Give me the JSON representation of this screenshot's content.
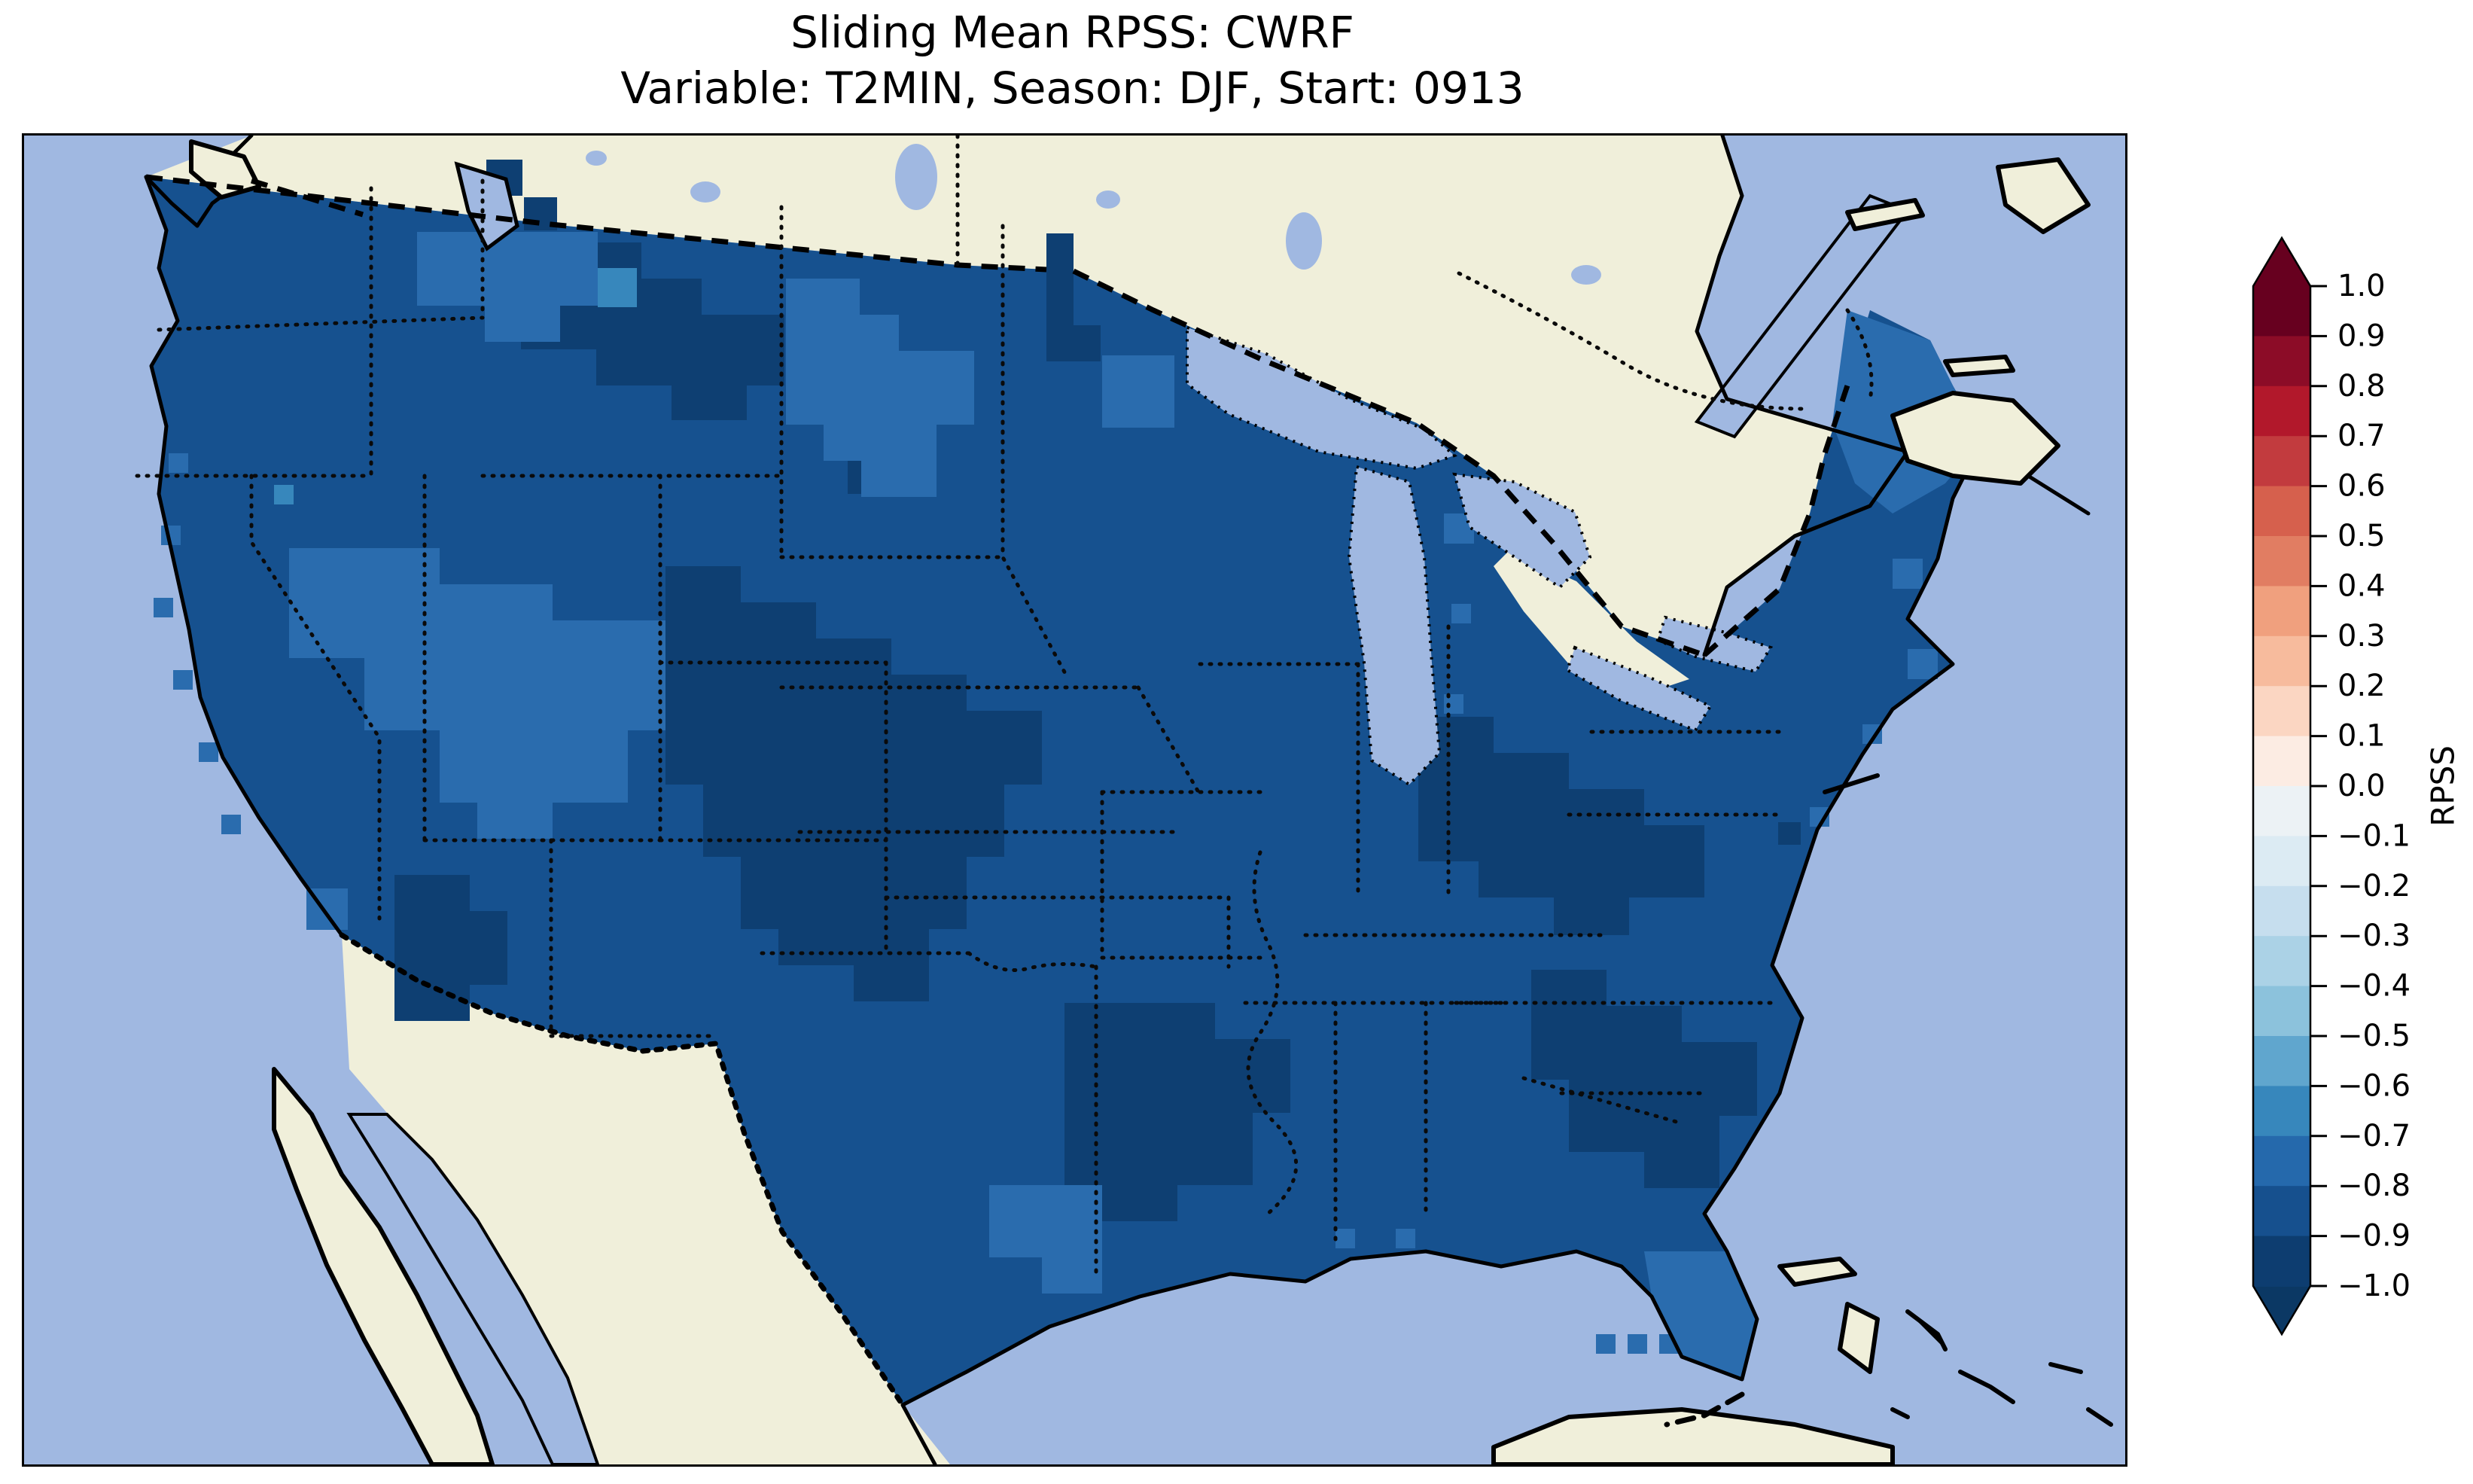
{
  "title": {
    "line1": "Sliding Mean RPSS: CWRF",
    "line2": "Variable: T2MIN, Season: DJF, Start: 0913"
  },
  "colorbar": {
    "label": "RPSS",
    "ticks": [
      "1.0",
      "0.9",
      "0.8",
      "0.7",
      "0.6",
      "0.5",
      "0.4",
      "0.3",
      "0.2",
      "0.1",
      "0.0",
      "−0.1",
      "−0.2",
      "−0.3",
      "−0.4",
      "−0.5",
      "−0.6",
      "−0.7",
      "−0.8",
      "−0.9",
      "−1.0"
    ],
    "segments": [
      "#67001f",
      "#8c0c27",
      "#b2182b",
      "#c23b3e",
      "#d6604d",
      "#e17d62",
      "#f0a07e",
      "#f7bb9d",
      "#fbd6c2",
      "#fcece3",
      "#ecf2f5",
      "#dcebf3",
      "#c6deee",
      "#abd2e6",
      "#8cc2dc",
      "#60a6ce",
      "#3787bc",
      "#2569ac",
      "#16508e",
      "#0d3d70"
    ],
    "extend_over": "#67001f",
    "extend_under": "#0b3864",
    "tick_color": "#000000"
  },
  "map": {
    "colors": {
      "water": "#a0b8e1",
      "land": "#f0efda",
      "coastline": "#000000",
      "bin_m065": "#3787bc",
      "bin_m075": "#2a6cae",
      "bin_m085": "#16518f",
      "bin_m095": "#0e3f72"
    }
  },
  "chart_data": {
    "type": "heatmap",
    "title": "Sliding Mean RPSS: CWRF",
    "subtitle": "Variable: T2MIN, Season: DJF, Start: 0913",
    "model": "CWRF",
    "variable": "T2MIN",
    "season": "DJF",
    "start": "0913",
    "colorbar_label": "RPSS",
    "colorbar_range": [
      -1.0,
      1.0
    ],
    "colorbar_tick_step": 0.1,
    "colorbar_bin_edges": [
      -1.0,
      -0.9,
      -0.8,
      -0.7,
      -0.6,
      -0.5,
      -0.4,
      -0.3,
      -0.2,
      -0.1,
      0.0,
      0.1,
      0.2,
      0.3,
      0.4,
      0.5,
      0.6,
      0.7,
      0.8,
      0.9,
      1.0
    ],
    "colormap": "RdBu_r discrete, 0.1-wide bins, pointed extension triangles on both ends",
    "region": "Continental United States gridded field over a North America basemap (cream land, light-blue ocean and Great Lakes, dotted state borders, dashed international borders)",
    "legend_position": "vertical colorbar at right",
    "observed_values": {
      "dominant_range": "-0.9 to -0.8 over most of CONUS",
      "regions": [
        {
          "name": "Most of CONUS interior",
          "rpss": "-0.9 to -0.8"
        },
        {
          "name": "Montana / western North Dakota",
          "rpss": "-1.0 to -0.9"
        },
        {
          "name": "Central Plains (WY/NE/CO/KS into OK & TX panhandle)",
          "rpss": "-1.0 to -0.9"
        },
        {
          "name": "East-central Texas into Louisiana",
          "rpss": "-1.0 to -0.9"
        },
        {
          "name": "Ohio Valley / Kentucky / West Virginia",
          "rpss": "-1.0 to -0.9"
        },
        {
          "name": "Carolinas / Georgia",
          "rpss": "-1.0 to -0.9"
        },
        {
          "name": "Southeastern Arizona",
          "rpss": "-1.0 to -0.9"
        },
        {
          "name": "Washington / Oregon / northern Rockies patches",
          "rpss": "-0.8 to -0.6"
        },
        {
          "name": "Eastern Dakotas patch",
          "rpss": "-0.8 to -0.7"
        },
        {
          "name": "Maine",
          "rpss": "-0.8 to -0.7"
        },
        {
          "name": "South Florida and scattered coastal cells",
          "rpss": "-0.8 to -0.7"
        },
        {
          "name": "No positive-RPSS (red) cells visible",
          "rpss": "all values negative"
        }
      ]
    }
  }
}
